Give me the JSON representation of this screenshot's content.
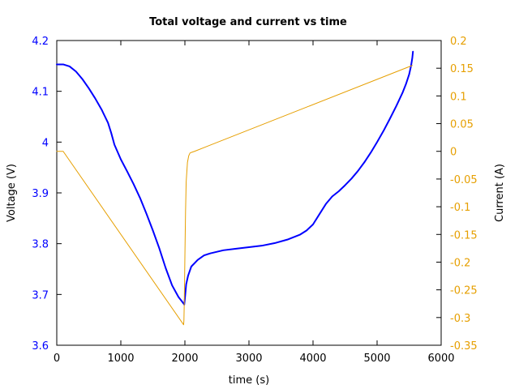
{
  "chart_data": {
    "type": "line",
    "title": "Total voltage and current vs time",
    "xlabel": "time (s)",
    "ylabel": "Voltage (V)",
    "y2label": "Current (A)",
    "xlim": [
      0,
      6000
    ],
    "ylim": [
      3.6,
      4.2
    ],
    "y2lim": [
      -0.35,
      0.2
    ],
    "xticks": [
      "0",
      "1000",
      "2000",
      "3000",
      "4000",
      "5000",
      "6000"
    ],
    "yticks": [
      "3.6",
      "3.7",
      "3.8",
      "3.9",
      "4",
      "4.1",
      "4.2"
    ],
    "y2ticks": [
      "-0.35",
      "-0.3",
      "-0.25",
      "-0.2",
      "-0.15",
      "-0.1",
      "-0.05",
      "0",
      "0.05",
      "0.1",
      "0.15",
      "0.2"
    ],
    "grid": false,
    "colors": {
      "voltage": "#0000ff",
      "current": "#e69f00",
      "axis": "#000000"
    },
    "series": [
      {
        "axis": "left",
        "x": [
          0,
          100,
          200,
          300,
          400,
          500,
          600,
          700,
          800,
          850,
          900,
          1000,
          1100,
          1200,
          1300,
          1400,
          1500,
          1600,
          1700,
          1800,
          1900,
          1950,
          1980,
          1990,
          2000,
          2020,
          2050,
          2100,
          2200,
          2300,
          2400,
          2600,
          2800,
          3000,
          3200,
          3400,
          3600,
          3800,
          3900,
          4000,
          4100,
          4200,
          4300,
          4400,
          4500,
          4600,
          4700,
          4800,
          4900,
          5000,
          5100,
          5200,
          5300,
          5400,
          5450,
          5500,
          5530,
          5550,
          5560
        ],
        "values": [
          4.153,
          4.153,
          4.149,
          4.139,
          4.124,
          4.106,
          4.086,
          4.064,
          4.038,
          4.018,
          3.995,
          3.966,
          3.942,
          3.917,
          3.89,
          3.859,
          3.826,
          3.791,
          3.752,
          3.718,
          3.695,
          3.687,
          3.682,
          3.68,
          3.692,
          3.72,
          3.737,
          3.755,
          3.768,
          3.777,
          3.781,
          3.787,
          3.79,
          3.793,
          3.796,
          3.801,
          3.808,
          3.818,
          3.826,
          3.838,
          3.858,
          3.878,
          3.893,
          3.903,
          3.915,
          3.928,
          3.943,
          3.96,
          3.979,
          4.0,
          4.022,
          4.046,
          4.071,
          4.098,
          4.114,
          4.133,
          4.15,
          4.166,
          4.178
        ]
      },
      {
        "axis": "right",
        "x": [
          0,
          100,
          1980,
          1985,
          1990,
          2000,
          2010,
          2020,
          2040,
          2060,
          2080,
          2100,
          2150,
          5550
        ],
        "values": [
          0.0,
          0.0,
          -0.313,
          -0.305,
          -0.275,
          -0.19,
          -0.11,
          -0.055,
          -0.02,
          -0.008,
          -0.003,
          -0.002,
          0.0,
          0.155
        ]
      }
    ]
  }
}
